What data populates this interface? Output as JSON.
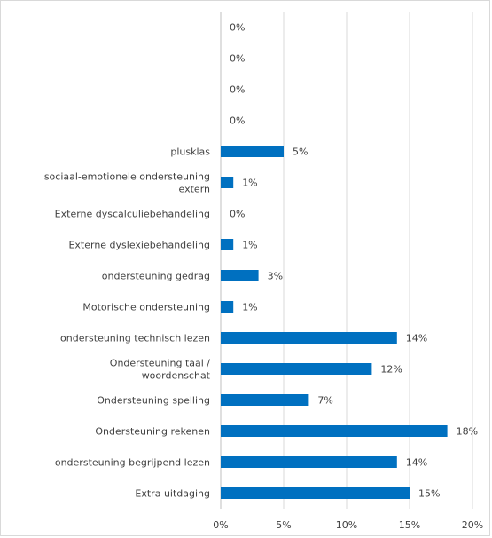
{
  "chart_data": {
    "type": "bar",
    "orientation": "horizontal",
    "categories": [
      "",
      "",
      "",
      "",
      "plusklas",
      "sociaal-emotionele ondersteuning extern",
      "Externe dyscalculiebehandeling",
      "Externe dyslexiebehandeling",
      "ondersteuning gedrag",
      "Motorische ondersteuning",
      "ondersteuning technisch lezen",
      "Ondersteuning taal / woordenschat",
      "Ondersteuning spelling",
      "Ondersteuning rekenen",
      "ondersteuning begrijpend lezen",
      "Extra uitdaging"
    ],
    "category_lines": [
      [],
      [],
      [],
      [],
      [
        "plusklas"
      ],
      [
        "sociaal-emotionele ondersteuning",
        "extern"
      ],
      [
        "Externe dyscalculiebehandeling"
      ],
      [
        "Externe dyslexiebehandeling"
      ],
      [
        "ondersteuning gedrag"
      ],
      [
        "Motorische ondersteuning"
      ],
      [
        "ondersteuning technisch lezen"
      ],
      [
        "Ondersteuning taal /",
        "woordenschat"
      ],
      [
        "Ondersteuning spelling"
      ],
      [
        "Ondersteuning rekenen"
      ],
      [
        "ondersteuning begrijpend lezen"
      ],
      [
        "Extra uitdaging"
      ]
    ],
    "values": [
      0,
      0,
      0,
      0,
      5,
      1,
      0,
      1,
      3,
      1,
      14,
      12,
      7,
      18,
      14,
      15
    ],
    "value_labels": [
      "0%",
      "0%",
      "0%",
      "0%",
      "5%",
      "1%",
      "0%",
      "1%",
      "3%",
      "1%",
      "14%",
      "12%",
      "7%",
      "18%",
      "14%",
      "15%"
    ],
    "x_ticks": [
      "0%",
      "5%",
      "10%",
      "15%",
      "20%"
    ],
    "xlim": [
      0,
      20
    ],
    "bar_color": "#0070c0",
    "grid": true,
    "legend": "none"
  }
}
